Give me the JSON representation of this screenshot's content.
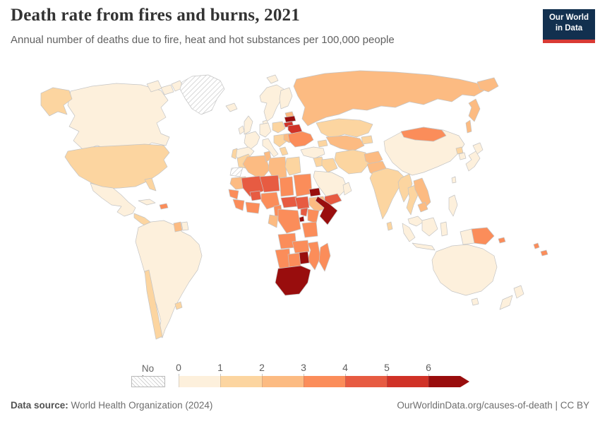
{
  "header": {
    "title": "Death rate from fires and burns, 2021",
    "subtitle": "Annual number of deaths due to fire, heat and hot substances per 100,000 people"
  },
  "logo": {
    "line1": "Our World",
    "line2": "in Data",
    "bg_color": "#12304f",
    "accent_color": "#d93a34"
  },
  "legend": {
    "no_data_label": "No data",
    "ticks": [
      "0",
      "1",
      "2",
      "3",
      "4",
      "5",
      "6"
    ],
    "bins": [
      {
        "range": "0–1",
        "color": "#fdf0dc"
      },
      {
        "range": "1–2",
        "color": "#fcd5a0"
      },
      {
        "range": "2–3",
        "color": "#fcbb82"
      },
      {
        "range": "3–4",
        "color": "#fb8d5a"
      },
      {
        "range": "4–5",
        "color": "#e75b42"
      },
      {
        "range": "5–6",
        "color": "#d03227"
      },
      {
        "range": "6+",
        "color": "#990d0d"
      }
    ]
  },
  "footer": {
    "source_label": "Data source:",
    "source_value": " World Health Organization (2024)",
    "link": "OurWorldinData.org/causes-of-death | CC BY"
  },
  "map": {
    "border_color": "#c4c4c4",
    "ocean_color": "#ffffff",
    "countries": {
      "canada": 0,
      "united-states": 1,
      "mexico": 0,
      "central-america": 1,
      "cuba": 0,
      "haiti": 3,
      "guyana": 2,
      "suriname": 0,
      "south-america": 0,
      "chile": 1,
      "uruguay": 1,
      "greenland": "no_data",
      "iceland": 0,
      "svalbard": 0,
      "united-kingdom": 0,
      "ireland": 0,
      "scandinavia": 0,
      "finland": 0,
      "denmark": 0,
      "france": 0,
      "spain": 0,
      "portugal": 1,
      "germany": 0,
      "italy": 0,
      "poland": 1,
      "balkans": 1,
      "greece": 1,
      "romania": 2,
      "estonia": 2,
      "latvia": 6,
      "lithuania": 5,
      "belarus": 5,
      "ukraine": 3,
      "russia": 2,
      "kazakhstan": 1,
      "central-asia": 2,
      "kyrgyzstan": 1,
      "caucasus": 1,
      "turkey": 0,
      "levant": 1,
      "iraq": 1,
      "iran": 1,
      "saudi-arabia": 0,
      "yemen": 4,
      "oman": 0,
      "afghanistan": 2,
      "pakistan": 2,
      "india": 1,
      "bangladesh": 1,
      "sri-lanka": 1,
      "china": 0,
      "mongolia": 3,
      "north-korea": 1,
      "south-korea": 0,
      "japan": 0,
      "taiwan": 0,
      "myanmar": 1,
      "thailand": 1,
      "vietnam-laos": 2,
      "cambodia": 2,
      "malaysia": 0,
      "indonesia": 0,
      "philippines": 0,
      "papua-new-guinea": 3,
      "solomon-islands": 3,
      "vanuatu": 3,
      "fiji": 3,
      "australia": 0,
      "new-zealand": 0,
      "morocco": 1,
      "western-sahara": "no_data",
      "algeria": 2,
      "tunisia": 2,
      "libya": 2,
      "egypt": 1,
      "mauritania": 2,
      "mali": 4,
      "senegal": 3,
      "guinea": 3,
      "burkina-faso": 4,
      "ghana-cote": 3,
      "niger": 4,
      "nigeria": 3,
      "chad": 3,
      "sudan": 3,
      "eritrea": 6,
      "ethiopia": 2,
      "somalia": 6,
      "cameroon": 3,
      "central-african-republic": 4,
      "south-sudan": 4,
      "uganda": 4,
      "kenya": 3,
      "rwanda-burundi": 6,
      "dr-congo": 3,
      "congo-gabon": 2,
      "tanzania": 3,
      "angola": 3,
      "zambia": 3,
      "mozambique": 3,
      "zimbabwe": 6,
      "namibia": 3,
      "botswana": 3,
      "south-africa": 6,
      "madagascar": 3
    }
  },
  "chart_data": {
    "type": "choropleth",
    "title": "Death rate from fires and burns, 2021",
    "subtitle": "Annual number of deaths due to fire, heat and hot substances per 100,000 people",
    "year": 2021,
    "unit": "deaths per 100,000 people",
    "legend_bins": [
      "0–1",
      "1–2",
      "2–3",
      "3–4",
      "4–5",
      "5–6",
      "6+"
    ],
    "legend_position": "bottom",
    "no_data": [
      "Greenland",
      "Western Sahara"
    ],
    "values": {
      "Canada": "0–1",
      "United States": "1–2",
      "Mexico": "0–1",
      "Central America": "1–2",
      "Cuba": "0–1",
      "Haiti": "3–4",
      "Guyana": "2–3",
      "Suriname": "0–1",
      "Brazil": "0–1",
      "Colombia": "0–1",
      "Peru": "0–1",
      "Argentina": "0–1",
      "Chile": "1–2",
      "Uruguay": "1–2",
      "Iceland": "0–1",
      "United Kingdom": "0–1",
      "Ireland": "0–1",
      "Norway": "0–1",
      "Sweden": "0–1",
      "Finland": "0–1",
      "Denmark": "0–1",
      "France": "0–1",
      "Spain": "0–1",
      "Portugal": "1–2",
      "Germany": "0–1",
      "Italy": "0–1",
      "Poland": "1–2",
      "Balkans": "1–2",
      "Greece": "1–2",
      "Romania": "2–3",
      "Estonia": "2–3",
      "Latvia": "6+",
      "Lithuania": "5–6",
      "Belarus": "5–6",
      "Ukraine": "3–4",
      "Russia": "2–3",
      "Kazakhstan": "1–2",
      "Uzbekistan & Turkmenistan": "2–3",
      "Kyrgyzstan & Tajikistan": "1–2",
      "Caucasus": "1–2",
      "Turkey": "0–1",
      "Syria & Levant": "1–2",
      "Iraq": "1–2",
      "Iran": "1–2",
      "Saudi Arabia": "0–1",
      "Yemen": "4–5",
      "Oman": "0–1",
      "Afghanistan": "2–3",
      "Pakistan": "2–3",
      "India": "1–2",
      "Bangladesh": "1–2",
      "Sri Lanka": "1–2",
      "China": "0–1",
      "Mongolia": "3–4",
      "North Korea": "1–2",
      "South Korea": "0–1",
      "Japan": "0–1",
      "Taiwan": "0–1",
      "Myanmar": "1–2",
      "Thailand": "1–2",
      "Vietnam & Laos": "2–3",
      "Cambodia": "2–3",
      "Malaysia": "0–1",
      "Indonesia": "0–1",
      "Philippines": "0–1",
      "Papua New Guinea": "3–4",
      "Solomon Islands": "3–4",
      "Vanuatu": "3–4",
      "Fiji": "3–4",
      "Australia": "0–1",
      "New Zealand": "0–1",
      "Morocco": "1–2",
      "Algeria": "2–3",
      "Tunisia": "2–3",
      "Libya": "2–3",
      "Egypt": "1–2",
      "Mauritania": "2–3",
      "Mali": "4–5",
      "Senegal": "3–4",
      "Guinea": "3–4",
      "Burkina Faso": "4–5",
      "Ghana & Cote d'Ivoire": "3–4",
      "Niger": "4–5",
      "Nigeria": "3–4",
      "Chad": "3–4",
      "Sudan": "3–4",
      "Eritrea": "6+",
      "Ethiopia": "2–3",
      "Somalia": "6+",
      "Cameroon": "3–4",
      "Central African Republic": "4–5",
      "South Sudan": "4–5",
      "Uganda": "4–5",
      "Kenya": "3–4",
      "Rwanda & Burundi": "6+",
      "DR Congo": "3–4",
      "Congo & Gabon": "2–3",
      "Tanzania": "3–4",
      "Angola": "3–4",
      "Zambia": "3–4",
      "Mozambique": "3–4",
      "Zimbabwe": "6+",
      "Namibia": "3–4",
      "Botswana": "3–4",
      "South Africa": "6+",
      "Madagascar": "3–4"
    }
  }
}
